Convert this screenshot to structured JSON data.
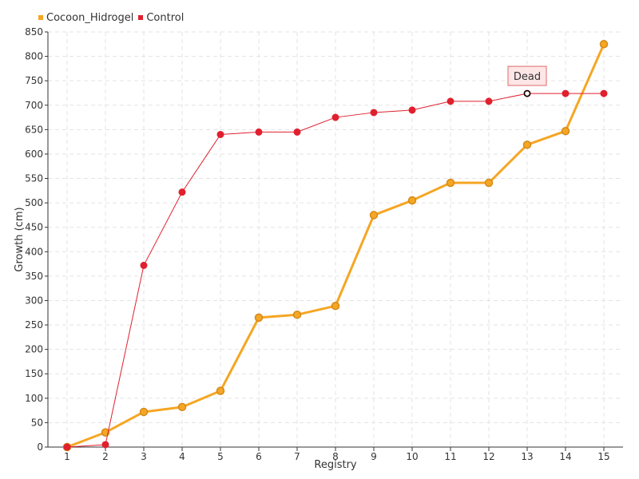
{
  "chart_data": {
    "type": "line",
    "title": "",
    "xlabel": "Registry",
    "ylabel": "Growth (cm)",
    "categories": [
      1,
      2,
      3,
      4,
      5,
      6,
      7,
      8,
      9,
      10,
      11,
      12,
      13,
      14,
      15
    ],
    "ylim": [
      0,
      850
    ],
    "ytick_step": 50,
    "grid": true,
    "legend_position": "top-left",
    "series": [
      {
        "name": "Cocoon_Hidrogel",
        "color": "#f5a623",
        "marker_stroke": "#d48a1a",
        "values": [
          0,
          30,
          72,
          82,
          115,
          265,
          271,
          289,
          475,
          505,
          541,
          541,
          619,
          647,
          825
        ]
      },
      {
        "name": "Control",
        "color": "#e0202e",
        "marker_stroke": "#e0202e",
        "values": [
          0,
          5,
          372,
          522,
          640,
          645,
          645,
          675,
          685,
          690,
          708,
          708,
          724,
          724,
          724
        ]
      }
    ],
    "annotations": [
      {
        "series": "Control",
        "category": 13,
        "text": "Dead"
      }
    ]
  }
}
